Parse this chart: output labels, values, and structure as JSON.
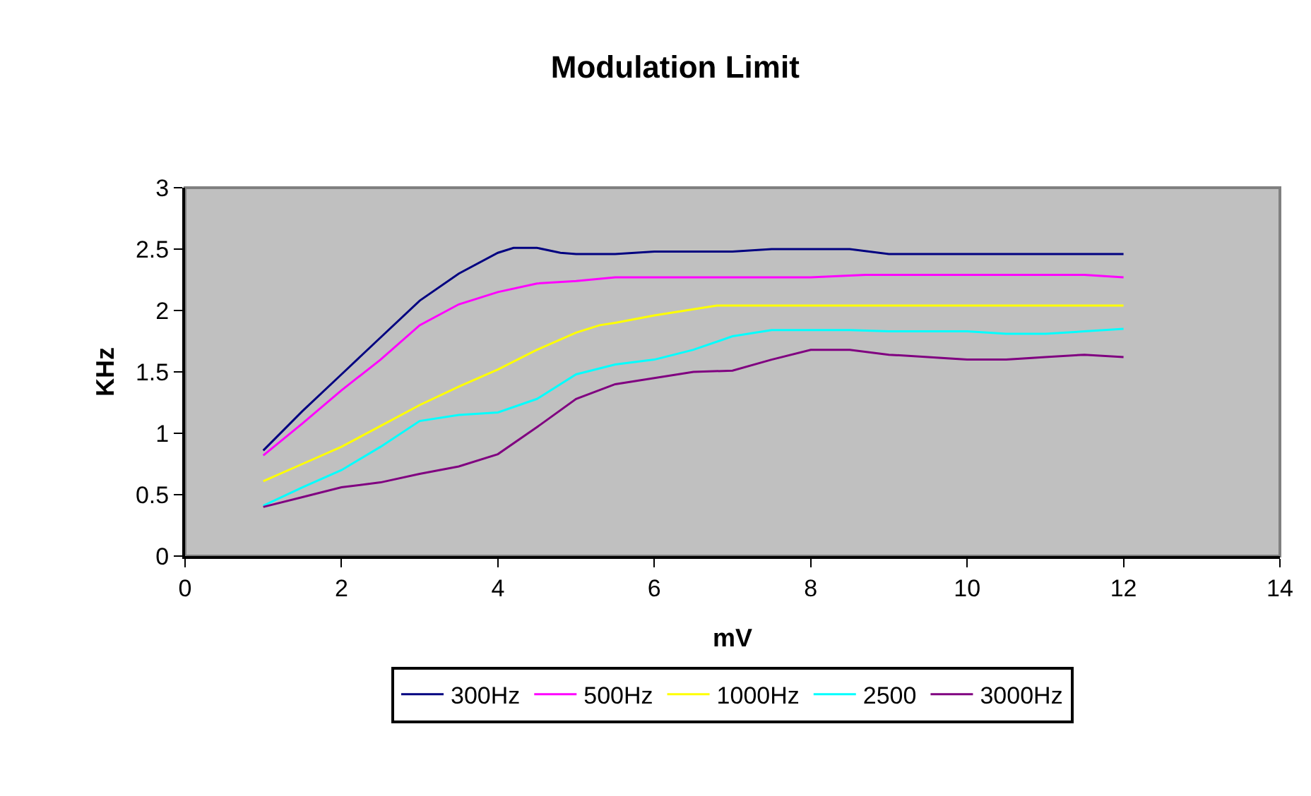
{
  "chart_data": {
    "type": "line",
    "title": "Modulation Limit",
    "xlabel": "mV",
    "ylabel": "KHz",
    "xlim": [
      0,
      14
    ],
    "xticks": [
      0,
      2,
      4,
      6,
      8,
      10,
      12,
      14
    ],
    "ylim": [
      0,
      3
    ],
    "yticks": [
      0,
      0.5,
      1,
      1.5,
      2,
      2.5,
      3
    ],
    "legend": "bottom",
    "marker": "none",
    "line_style": "solid",
    "series": [
      {
        "name": "300Hz",
        "color": "#000080",
        "x": [
          1,
          1.5,
          2,
          2.5,
          3,
          3.5,
          4,
          4.2,
          4.5,
          4.8,
          5,
          5.5,
          6,
          7,
          7.5,
          8.5,
          9,
          10,
          11,
          12
        ],
        "values": [
          0.86,
          1.18,
          1.48,
          1.78,
          2.08,
          2.3,
          2.47,
          2.51,
          2.51,
          2.47,
          2.46,
          2.46,
          2.48,
          2.48,
          2.5,
          2.5,
          2.46,
          2.46,
          2.46,
          2.46
        ]
      },
      {
        "name": "500Hz",
        "color": "#ff00ff",
        "x": [
          1,
          1.5,
          2,
          2.5,
          3,
          3.5,
          4,
          4.5,
          5,
          5.5,
          6,
          8,
          8.7,
          11.5,
          12
        ],
        "values": [
          0.82,
          1.08,
          1.35,
          1.6,
          1.88,
          2.05,
          2.15,
          2.22,
          2.24,
          2.27,
          2.27,
          2.27,
          2.29,
          2.29,
          2.27
        ]
      },
      {
        "name": "1000Hz",
        "color": "#ffff00",
        "x": [
          1,
          1.5,
          2,
          2.5,
          3,
          3.5,
          4,
          4.5,
          5,
          5.3,
          5.5,
          6,
          6.5,
          6.8,
          12
        ],
        "values": [
          0.61,
          0.75,
          0.89,
          1.06,
          1.23,
          1.38,
          1.52,
          1.68,
          1.82,
          1.88,
          1.9,
          1.96,
          2.01,
          2.04,
          2.04
        ]
      },
      {
        "name": "2500",
        "color": "#00ffff",
        "x": [
          1,
          1.5,
          2,
          2.5,
          3,
          3.5,
          4,
          4.5,
          5,
          5.5,
          6,
          6.5,
          7,
          7.5,
          8.5,
          9,
          10,
          10.5,
          11,
          11.5,
          12
        ],
        "values": [
          0.41,
          0.56,
          0.7,
          0.89,
          1.1,
          1.15,
          1.17,
          1.28,
          1.48,
          1.56,
          1.6,
          1.68,
          1.79,
          1.84,
          1.84,
          1.83,
          1.83,
          1.81,
          1.81,
          1.83,
          1.85
        ]
      },
      {
        "name": "3000Hz",
        "color": "#800080",
        "x": [
          1,
          1.5,
          2,
          2.5,
          3,
          3.5,
          4,
          4.5,
          5,
          5.5,
          6,
          6.5,
          7,
          7.5,
          8,
          8.5,
          9,
          9.5,
          10,
          10.5,
          11,
          11.5,
          12
        ],
        "values": [
          0.4,
          0.48,
          0.56,
          0.6,
          0.67,
          0.73,
          0.83,
          1.05,
          1.28,
          1.4,
          1.45,
          1.5,
          1.51,
          1.6,
          1.68,
          1.68,
          1.64,
          1.62,
          1.6,
          1.6,
          1.62,
          1.64,
          1.62
        ]
      }
    ]
  }
}
